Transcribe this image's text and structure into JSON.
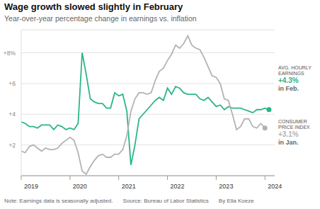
{
  "chart_data": {
    "type": "line",
    "title": "Wage growth slowed slightly in February",
    "subtitle": "Year-over-year percentage change in earnings vs. inflation",
    "footer": [
      "Note: Earnings data is seasonally adjusted.",
      "Source: Bureau of Labor Statistics",
      "By Ella Koeze"
    ],
    "x": [
      2019,
      2019.083,
      2019.167,
      2019.25,
      2019.333,
      2019.417,
      2019.5,
      2019.583,
      2019.667,
      2019.75,
      2019.833,
      2019.917,
      2020,
      2020.083,
      2020.167,
      2020.25,
      2020.333,
      2020.417,
      2020.5,
      2020.583,
      2020.667,
      2020.75,
      2020.833,
      2020.917,
      2021,
      2021.083,
      2021.167,
      2021.25,
      2021.333,
      2021.417,
      2021.5,
      2021.583,
      2021.667,
      2021.75,
      2021.833,
      2021.917,
      2022,
      2022.083,
      2022.167,
      2022.25,
      2022.333,
      2022.417,
      2022.5,
      2022.583,
      2022.667,
      2022.75,
      2022.833,
      2022.917,
      2023,
      2023.083,
      2023.167,
      2023.25,
      2023.333,
      2023.417,
      2023.5,
      2023.583,
      2023.667,
      2023.75,
      2023.833,
      2023.917,
      2024,
      2024.083
    ],
    "series": [
      {
        "name": "AVG. HOURLY EARNINGS",
        "color": "#2bb587",
        "value_text": "+4.3%",
        "when": "in Feb.",
        "values": [
          3.5,
          3.4,
          3.2,
          3.2,
          3.1,
          3.3,
          3.3,
          3.3,
          3.0,
          3.3,
          3.2,
          3.0,
          3.1,
          3.0,
          3.4,
          8.0,
          6.6,
          5.0,
          4.8,
          4.7,
          4.7,
          4.4,
          4.4,
          5.4,
          5.2,
          5.3,
          4.2,
          0.7,
          2.0,
          3.7,
          4.0,
          4.3,
          4.6,
          4.9,
          5.1,
          4.9,
          5.7,
          5.3,
          5.8,
          5.7,
          5.4,
          5.3,
          5.3,
          5.3,
          5.0,
          4.9,
          5.1,
          4.8,
          4.5,
          4.6,
          4.3,
          4.5,
          4.4,
          4.4,
          4.4,
          4.3,
          4.2,
          4.1,
          4.3,
          4.3,
          4.4,
          4.3
        ]
      },
      {
        "name": "CONSUMER PRICE INDEX",
        "color": "#b3b3b3",
        "value_text": "+3.1%",
        "when": "in Jan.",
        "values": [
          1.6,
          1.5,
          1.9,
          2.0,
          1.8,
          1.6,
          1.8,
          1.7,
          1.7,
          1.8,
          2.1,
          2.3,
          2.5,
          2.3,
          1.5,
          0.3,
          0.1,
          0.6,
          1.0,
          1.3,
          1.4,
          1.2,
          1.2,
          1.4,
          1.4,
          1.7,
          2.6,
          4.2,
          5.0,
          5.4,
          5.4,
          5.3,
          5.4,
          6.2,
          6.8,
          7.0,
          7.5,
          7.9,
          8.5,
          8.3,
          8.6,
          9.1,
          8.5,
          8.3,
          8.2,
          7.7,
          7.1,
          6.5,
          6.4,
          6.0,
          5.0,
          4.9,
          4.0,
          3.0,
          3.2,
          3.7,
          3.7,
          3.2,
          3.1,
          3.4,
          3.1,
          null
        ]
      }
    ],
    "xlim": [
      2019,
      2024.2
    ],
    "xticks": [
      2019,
      2020,
      2021,
      2022,
      2023,
      2024
    ],
    "ylim": [
      0,
      9.5
    ],
    "yticks": [
      {
        "value": 2,
        "label": "+2"
      },
      {
        "value": 4,
        "label": "+4"
      },
      {
        "value": 6,
        "label": "+6"
      },
      {
        "value": 8,
        "label": "+8%"
      }
    ],
    "grid": true
  }
}
